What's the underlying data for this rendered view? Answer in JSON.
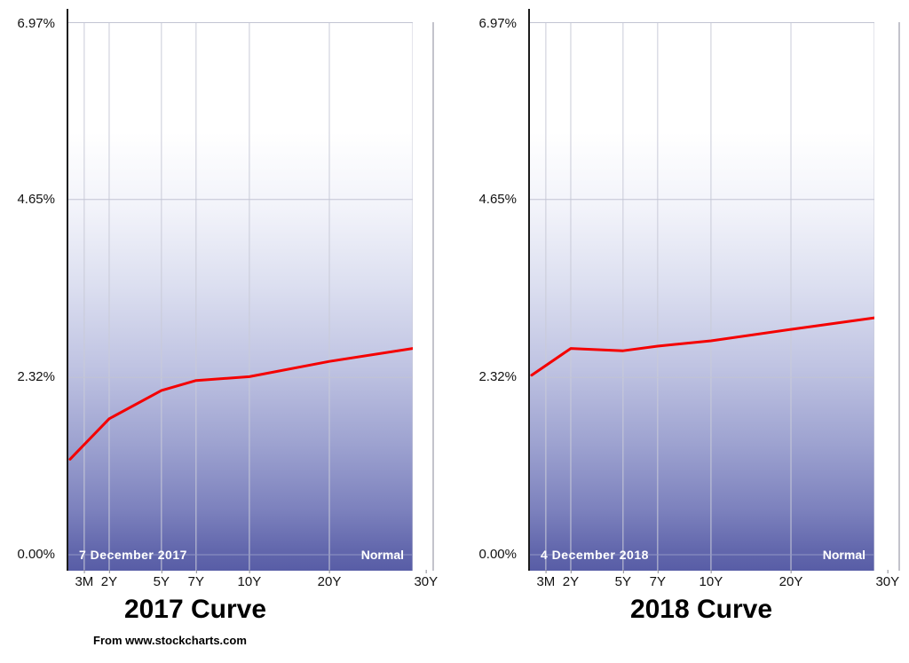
{
  "credit": "From www.stockcharts.com",
  "chart_data": [
    {
      "type": "line",
      "title": "2017 Curve",
      "date_label": "7  December 2017",
      "mode_label": "Normal",
      "y_axis_labels": [
        "6.97%",
        "4.65%",
        "2.32%",
        "0.00%"
      ],
      "x_categories": [
        "3M",
        "2Y",
        "5Y",
        "7Y",
        "10Y",
        "20Y",
        "30Y"
      ],
      "values": [
        1.25,
        1.78,
        2.15,
        2.28,
        2.33,
        2.53,
        2.7
      ],
      "ylim": [
        0,
        6.97
      ],
      "y_ticks": [
        6.97,
        4.65,
        2.32,
        0
      ],
      "x_positions": [
        0.01,
        0.123,
        0.274,
        0.374,
        0.528,
        0.759,
        1.0
      ],
      "tick_positions": [
        0.051,
        0.123,
        0.274,
        0.374,
        0.528,
        0.759,
        1.038
      ],
      "line_color": "#f40000",
      "grid": true,
      "legend": "none"
    },
    {
      "type": "line",
      "title": "2018 Curve",
      "date_label": "4  December 2018",
      "mode_label": "Normal",
      "y_axis_labels": [
        "6.97%",
        "4.65%",
        "2.32%",
        "0.00%"
      ],
      "x_categories": [
        "3M",
        "2Y",
        "5Y",
        "7Y",
        "10Y",
        "20Y",
        "30Y"
      ],
      "values": [
        2.35,
        2.7,
        2.67,
        2.73,
        2.8,
        2.95,
        3.1
      ],
      "ylim": [
        0,
        6.97
      ],
      "y_ticks": [
        6.97,
        4.65,
        2.32,
        0
      ],
      "x_positions": [
        0.01,
        0.123,
        0.274,
        0.374,
        0.528,
        0.759,
        1.0
      ],
      "tick_positions": [
        0.051,
        0.123,
        0.274,
        0.374,
        0.528,
        0.759,
        1.038
      ],
      "line_color": "#f40000",
      "grid": true,
      "legend": "none"
    }
  ],
  "colors": {
    "line": "#f40000",
    "grid": "#c9cbd8",
    "axis": "#1c1c1c",
    "band_text": "#ffffff",
    "gradient_bottom": "#585da6"
  }
}
